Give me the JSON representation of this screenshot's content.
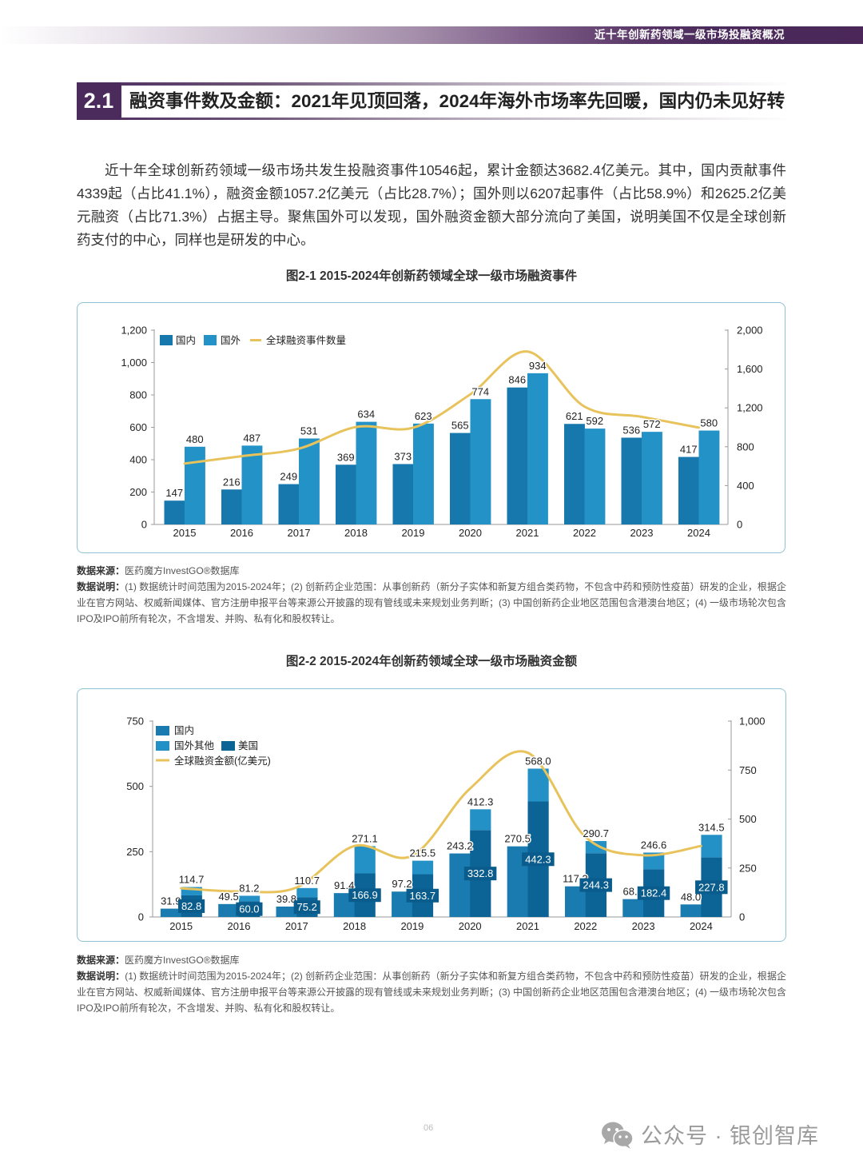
{
  "theme": {
    "accent": "#4b2a5c",
    "frame_border": "#8ec2d4"
  },
  "header": {
    "running_title": "近十年创新药领域一级市场投融资概况"
  },
  "section": {
    "number": "2.1",
    "title": "融资事件数及金额：2021年见顶回落，2024年海外市场率先回暖，国内仍未见好转"
  },
  "body": {
    "paragraph": "近十年全球创新药领域一级市场共发生投融资事件10546起，累计金额达3682.4亿美元。其中，国内贡献事件4339起（占比41.1%），融资金额1057.2亿美元（占比28.7%）；国外则以6207起事件（占比58.9%）和2625.2亿美元融资（占比71.3%）占据主导。聚焦国外可以发现，国外融资金额大部分流向了美国，说明美国不仅是全球创新药支付的中心，同样也是研发的中心。"
  },
  "figures": [
    {
      "caption": "图2-1 2015-2024年创新药领域全球一级市场融资事件",
      "source_label": "数据来源：",
      "source": "医药魔方InvestGO®数据库",
      "notes_label": "数据说明：",
      "notes": "(1) 数据统计时间范围为2015-2024年；(2) 创新药企业范围：从事创新药（新分子实体和新复方组合类药物，不包含中药和预防性疫苗）研发的企业，根据企业在官方网站、权威新闻媒体、官方注册申报平台等来源公开披露的现有管线或未来规划业务判断；(3) 中国创新药企业地区范围包含港澳台地区；(4) 一级市场轮次包含IPO及IPO前所有轮次，不含增发、并购、私有化和股权转让。"
    },
    {
      "caption": "图2-2 2015-2024年创新药领域全球一级市场融资金额",
      "source_label": "数据来源：",
      "source": "医药魔方InvestGO®数据库",
      "notes_label": "数据说明：",
      "notes": "(1) 数据统计时间范围为2015-2024年；(2) 创新药企业范围：从事创新药（新分子实体和新复方组合类药物，不包含中药和预防性疫苗）研发的企业，根据企业在官方网站、权威新闻媒体、官方注册申报平台等来源公开披露的现有管线或未来规划业务判断；(3) 中国创新药企业地区范围包含港澳台地区；(4) 一级市场轮次包含IPO及IPO前所有轮次，不含增发、并购、私有化和股权转让。"
    }
  ],
  "chart_data": [
    {
      "type": "bar",
      "title": "图2-1 2015-2024年创新药领域全球一级市场融资事件",
      "xlabel": "",
      "ylabel": "",
      "grid": false,
      "legend_position": "top-left",
      "value_decimals": 0,
      "categories": [
        "2015",
        "2016",
        "2017",
        "2018",
        "2019",
        "2020",
        "2021",
        "2022",
        "2023",
        "2024"
      ],
      "series": [
        {
          "name": "国内",
          "type": "bar",
          "axis": "left",
          "color": "#1778ad",
          "data_labels": "above",
          "values": [
            147,
            216,
            249,
            369,
            373,
            565,
            846,
            621,
            536,
            417
          ]
        },
        {
          "name": "国外",
          "type": "bar",
          "axis": "left",
          "color": "#2292c7",
          "data_labels": "above",
          "values": [
            480,
            487,
            531,
            634,
            623,
            774,
            934,
            592,
            572,
            580
          ]
        },
        {
          "name": "全球融资事件数量",
          "type": "line",
          "axis": "right",
          "color": "#e8c35c",
          "data_labels": "none",
          "values": [
            627,
            703,
            780,
            1003,
            996,
            1339,
            1780,
            1213,
            1108,
            997
          ]
        }
      ],
      "stacks": [],
      "y_left": {
        "range": [
          0,
          1200
        ],
        "ticks": [
          0,
          200,
          400,
          600,
          800,
          1000,
          1200
        ],
        "tick_labels": [
          "0",
          "200",
          "400",
          "600",
          "800",
          "1,000",
          "1,200"
        ]
      },
      "y_right": {
        "range": [
          0,
          2000
        ],
        "ticks": [
          0,
          400,
          800,
          1200,
          1600,
          2000
        ],
        "tick_labels": [
          "0",
          "400",
          "800",
          "1,200",
          "1,600",
          "2,000"
        ]
      }
    },
    {
      "type": "bar",
      "title": "图2-2 2015-2024年创新药领域全球一级市场融资金额",
      "xlabel": "",
      "ylabel": "亿美元",
      "grid": false,
      "legend_position": "top-left",
      "value_decimals": 1,
      "categories": [
        "2015",
        "2016",
        "2017",
        "2018",
        "2019",
        "2020",
        "2021",
        "2022",
        "2023",
        "2024"
      ],
      "series": [
        {
          "name": "国内",
          "type": "bar",
          "axis": "left",
          "color": "#1a7bb0",
          "data_labels": "above",
          "values": [
            31.9,
            49.5,
            39.8,
            91.4,
            97.2,
            243.2,
            270.5,
            117.3,
            68.4,
            48.0
          ]
        },
        {
          "name": "国外其他",
          "type": "bar",
          "axis": "left",
          "stack": "国外",
          "color": "#2391c6",
          "data_labels": "none",
          "values": [
            31.9,
            21.2,
            35.5,
            104.2,
            51.8,
            79.5,
            125.7,
            46.4,
            64.2,
            86.7
          ]
        },
        {
          "name": "美国",
          "type": "bar",
          "axis": "left",
          "stack": "国外",
          "color": "#0b6396",
          "data_labels": "inside-boxed",
          "values": [
            82.8,
            60.0,
            75.2,
            166.9,
            163.7,
            332.8,
            442.3,
            244.3,
            182.4,
            227.8
          ]
        },
        {
          "name": "全球融资金额(亿美元)",
          "type": "line",
          "axis": "right",
          "color": "#e8c35c",
          "data_labels": "none",
          "values": [
            146.6,
            130.7,
            150.5,
            362.5,
            312.7,
            655.5,
            838.5,
            408.0,
            315.0,
            362.5
          ]
        }
      ],
      "stacks": [
        {
          "name": "国外",
          "members_bottom_to_top": [
            "美国",
            "国外其他"
          ],
          "totals": [
            114.7,
            81.2,
            110.7,
            271.1,
            215.5,
            412.3,
            568.0,
            290.7,
            246.6,
            314.5
          ]
        }
      ],
      "y_left": {
        "range": [
          0,
          750
        ],
        "ticks": [
          0,
          250,
          500,
          750
        ],
        "tick_labels": [
          "0",
          "250",
          "500",
          "750"
        ]
      },
      "y_right": {
        "range": [
          0,
          1000
        ],
        "ticks": [
          0,
          250,
          500,
          750,
          1000
        ],
        "tick_labels": [
          "0",
          "250",
          "500",
          "750",
          "1,000"
        ]
      }
    }
  ],
  "footer": {
    "page_number": "06",
    "watermark": "公众号 · 银创智库"
  }
}
